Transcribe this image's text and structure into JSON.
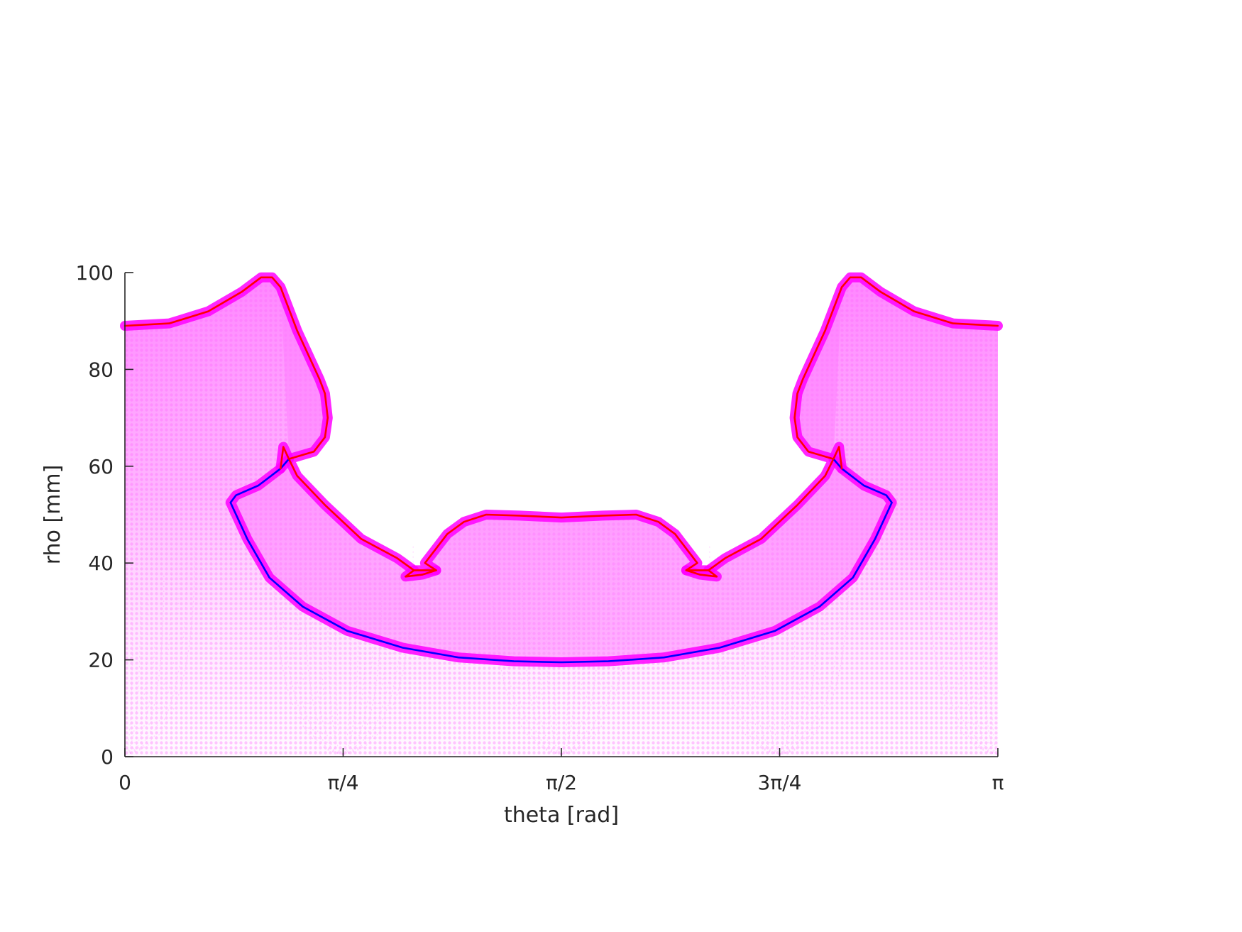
{
  "chart_data": {
    "type": "scatter",
    "title": "",
    "xlabel": "theta [rad]",
    "ylabel": "rho [mm]",
    "xlim": [
      0,
      3.14159
    ],
    "ylim": [
      0,
      100
    ],
    "xticks": [
      {
        "value": 0,
        "label": "0"
      },
      {
        "value": 0.7854,
        "label": "π/4"
      },
      {
        "value": 1.5708,
        "label": "π/2"
      },
      {
        "value": 2.3562,
        "label": "3π/4"
      },
      {
        "value": 3.14159,
        "label": "π"
      }
    ],
    "yticks": [
      {
        "value": 0,
        "label": "0"
      },
      {
        "value": 20,
        "label": "20"
      },
      {
        "value": 40,
        "label": "40"
      },
      {
        "value": 60,
        "label": "60"
      },
      {
        "value": 80,
        "label": "80"
      },
      {
        "value": 100,
        "label": "100"
      }
    ],
    "grid": false,
    "colors": {
      "fill": "#ff80ff",
      "fill_light": "#ffc8ff",
      "outline_magenta": "#ff00ff",
      "outline_red": "#ff0000",
      "outline_blue": "#0000ff",
      "axis": "#262626"
    },
    "series": [
      {
        "style": "red-outline",
        "points": [
          [
            0,
            89
          ],
          [
            0.16,
            89.5
          ],
          [
            0.3,
            92
          ],
          [
            0.42,
            96
          ],
          [
            0.49,
            99
          ],
          [
            0.53,
            99
          ],
          [
            0.56,
            97
          ],
          [
            0.62,
            88
          ],
          [
            0.7,
            78
          ],
          [
            0.72,
            75
          ],
          [
            0.73,
            70
          ],
          [
            0.72,
            66
          ],
          [
            0.68,
            63
          ],
          [
            0.59,
            61.5
          ],
          [
            0.62,
            58
          ],
          [
            0.72,
            52
          ],
          [
            0.85,
            45
          ],
          [
            0.98,
            41
          ],
          [
            1.04,
            38.5
          ],
          [
            1.12,
            38.5
          ],
          [
            1.08,
            40
          ],
          [
            1.16,
            46
          ],
          [
            1.22,
            48.5
          ],
          [
            1.3,
            50
          ],
          [
            1.42,
            49.8
          ],
          [
            1.5708,
            49.4
          ],
          [
            1.72,
            49.8
          ],
          [
            1.84,
            50
          ],
          [
            1.92,
            48.5
          ],
          [
            1.98,
            46
          ],
          [
            2.06,
            40
          ],
          [
            2.02,
            38.5
          ],
          [
            2.1,
            38.5
          ],
          [
            2.16,
            41
          ],
          [
            2.29,
            45
          ],
          [
            2.42,
            52
          ],
          [
            2.52,
            58
          ],
          [
            2.55,
            61.5
          ],
          [
            2.46,
            63
          ],
          [
            2.42,
            66
          ],
          [
            2.41,
            70
          ],
          [
            2.42,
            75
          ],
          [
            2.44,
            78
          ],
          [
            2.52,
            88
          ],
          [
            2.58,
            97
          ],
          [
            2.61,
            99
          ],
          [
            2.65,
            99
          ],
          [
            2.72,
            96
          ],
          [
            2.84,
            92
          ],
          [
            2.98,
            89.5
          ],
          [
            3.14159,
            89
          ]
        ]
      },
      {
        "style": "blue-outline",
        "points": [
          [
            0.59,
            61.5
          ],
          [
            0.56,
            59.5
          ],
          [
            0.48,
            56
          ],
          [
            0.4,
            54
          ],
          [
            0.38,
            52.5
          ],
          [
            0.44,
            45
          ],
          [
            0.52,
            37
          ],
          [
            0.64,
            31
          ],
          [
            0.8,
            26
          ],
          [
            1.0,
            22.5
          ],
          [
            1.2,
            20.5
          ],
          [
            1.4,
            19.7
          ],
          [
            1.5708,
            19.5
          ],
          [
            1.74,
            19.7
          ],
          [
            1.94,
            20.5
          ],
          [
            2.14,
            22.5
          ],
          [
            2.34,
            26
          ],
          [
            2.5,
            31
          ],
          [
            2.62,
            37
          ],
          [
            2.7,
            45
          ],
          [
            2.76,
            52.5
          ],
          [
            2.74,
            54
          ],
          [
            2.66,
            56
          ],
          [
            2.58,
            59.5
          ],
          [
            2.55,
            61.5
          ]
        ]
      },
      {
        "style": "notch-left",
        "points": [
          [
            0.56,
            59.5
          ],
          [
            0.57,
            64
          ],
          [
            0.59,
            61.5
          ]
        ]
      },
      {
        "style": "notch-right",
        "points": [
          [
            2.55,
            61.5
          ],
          [
            2.57,
            64
          ],
          [
            2.58,
            59.5
          ]
        ]
      },
      {
        "style": "lip-left",
        "points": [
          [
            1.04,
            38.5
          ],
          [
            1.01,
            37.2
          ],
          [
            1.07,
            37.6
          ],
          [
            1.12,
            38.5
          ]
        ]
      },
      {
        "style": "lip-right",
        "points": [
          [
            2.02,
            38.5
          ],
          [
            2.07,
            37.6
          ],
          [
            2.13,
            37.2
          ],
          [
            2.1,
            38.5
          ]
        ]
      }
    ]
  }
}
